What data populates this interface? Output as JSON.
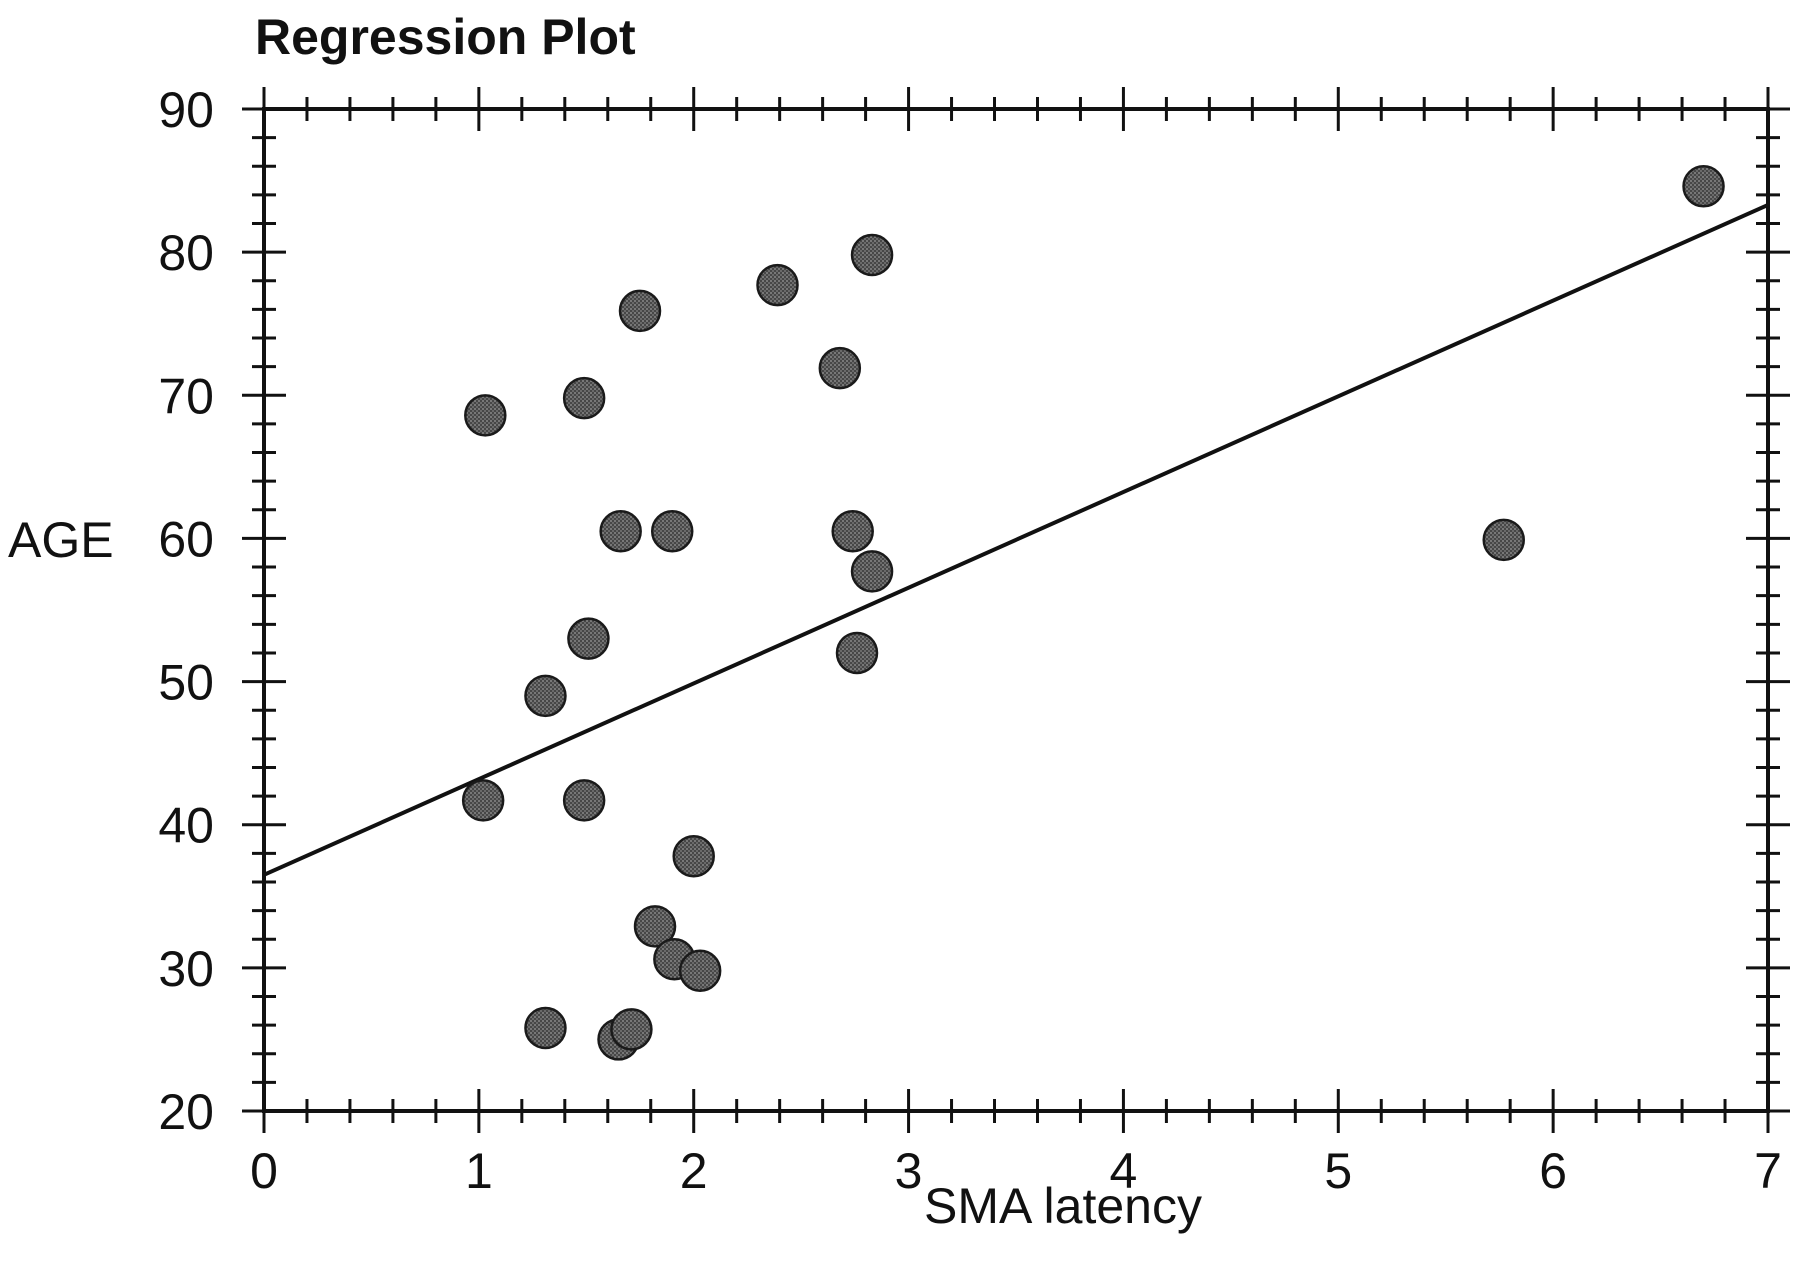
{
  "chart_data": {
    "type": "scatter",
    "title": "Regression Plot",
    "xlabel": "SMA latency",
    "ylabel": "AGE",
    "xlim": [
      0,
      7
    ],
    "ylim": [
      20,
      90
    ],
    "xticks": [
      "0",
      "1",
      "2",
      "3",
      "4",
      "5",
      "6",
      "7"
    ],
    "yticks": [
      "20",
      "30",
      "40",
      "50",
      "60",
      "70",
      "80",
      "90"
    ],
    "grid": false,
    "legend": "none",
    "points": [
      {
        "x": 1.03,
        "y": 68.6
      },
      {
        "x": 1.49,
        "y": 69.8
      },
      {
        "x": 1.75,
        "y": 75.9
      },
      {
        "x": 2.39,
        "y": 77.7
      },
      {
        "x": 2.83,
        "y": 79.8
      },
      {
        "x": 2.68,
        "y": 71.9
      },
      {
        "x": 1.66,
        "y": 60.5
      },
      {
        "x": 1.9,
        "y": 60.5
      },
      {
        "x": 2.74,
        "y": 60.5
      },
      {
        "x": 2.83,
        "y": 57.7
      },
      {
        "x": 1.51,
        "y": 53.0
      },
      {
        "x": 2.76,
        "y": 52.0
      },
      {
        "x": 1.31,
        "y": 49.0
      },
      {
        "x": 1.02,
        "y": 41.7
      },
      {
        "x": 1.49,
        "y": 41.7
      },
      {
        "x": 2.0,
        "y": 37.8
      },
      {
        "x": 1.82,
        "y": 32.9
      },
      {
        "x": 1.91,
        "y": 30.6
      },
      {
        "x": 2.03,
        "y": 29.8
      },
      {
        "x": 1.31,
        "y": 25.8
      },
      {
        "x": 1.65,
        "y": 25.0
      },
      {
        "x": 1.71,
        "y": 25.7
      },
      {
        "x": 5.77,
        "y": 59.9
      },
      {
        "x": 6.7,
        "y": 84.6
      }
    ],
    "regression_line": {
      "x": [
        0,
        7
      ],
      "y": [
        36.5,
        83.3
      ]
    },
    "colors": {
      "point": "#555555",
      "point_edge": "#1a1a1a",
      "line": "#111111",
      "axis": "#111111"
    }
  }
}
